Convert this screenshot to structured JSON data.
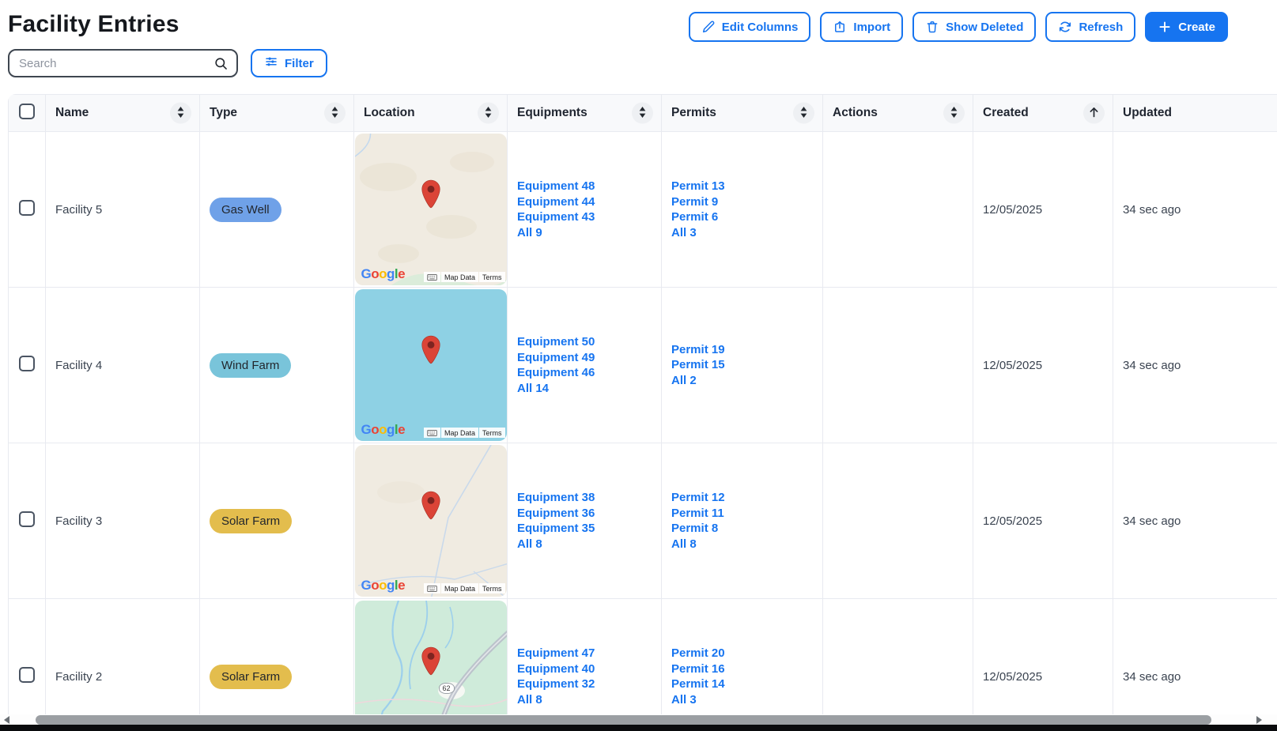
{
  "page": {
    "title": "Facility Entries",
    "accent_color": "#1674f0",
    "link_color": "#1674f0"
  },
  "toolbar": {
    "search": {
      "placeholder": "Search"
    },
    "filter": {
      "label": "Filter"
    },
    "actions": [
      {
        "id": "edit-columns",
        "label": "Edit Columns",
        "icon": "pencil-icon",
        "variant": "outline"
      },
      {
        "id": "import",
        "label": "Import",
        "icon": "upload-icon",
        "variant": "outline"
      },
      {
        "id": "show-deleted",
        "label": "Show Deleted",
        "icon": "trash-icon",
        "variant": "outline"
      },
      {
        "id": "refresh",
        "label": "Refresh",
        "icon": "refresh-icon",
        "variant": "outline"
      },
      {
        "id": "create",
        "label": "Create",
        "icon": "plus-icon",
        "variant": "primary"
      }
    ]
  },
  "table": {
    "columns": [
      {
        "id": "select",
        "label": "",
        "sort": null
      },
      {
        "id": "name",
        "label": "Name",
        "sort": "both"
      },
      {
        "id": "type",
        "label": "Type",
        "sort": "both"
      },
      {
        "id": "location",
        "label": "Location",
        "sort": "both"
      },
      {
        "id": "equipments",
        "label": "Equipments",
        "sort": "both"
      },
      {
        "id": "permits",
        "label": "Permits",
        "sort": "both"
      },
      {
        "id": "actions",
        "label": "Actions",
        "sort": "both"
      },
      {
        "id": "created",
        "label": "Created",
        "sort": "asc"
      },
      {
        "id": "updated",
        "label": "Updated",
        "sort": null
      }
    ],
    "map_attribution": {
      "google": "Google",
      "map_data": "Map Data",
      "terms": "Terms"
    },
    "rows": [
      {
        "name": "Facility 5",
        "type": {
          "label": "Gas Well",
          "bg": "#6FA1E8"
        },
        "map": {
          "style": "terrain-beige"
        },
        "equipments": [
          "Equipment 48",
          "Equipment 44",
          "Equipment 43",
          "All 9"
        ],
        "permits": [
          "Permit 13",
          "Permit 9",
          "Permit 6",
          "All 3"
        ],
        "created": "12/05/2025",
        "updated": "34 sec ago"
      },
      {
        "name": "Facility 4",
        "type": {
          "label": "Wind Farm",
          "bg": "#79C4DA"
        },
        "map": {
          "style": "water"
        },
        "equipments": [
          "Equipment 50",
          "Equipment 49",
          "Equipment 46",
          "All 14"
        ],
        "permits": [
          "Permit 19",
          "Permit 15",
          "All 2"
        ],
        "created": "12/05/2025",
        "updated": "34 sec ago"
      },
      {
        "name": "Facility 3",
        "type": {
          "label": "Solar Farm",
          "bg": "#E3BD4D"
        },
        "map": {
          "style": "terrain-roads"
        },
        "equipments": [
          "Equipment 38",
          "Equipment 36",
          "Equipment 35",
          "All 8"
        ],
        "permits": [
          "Permit 12",
          "Permit 11",
          "Permit 8",
          "All 8"
        ],
        "created": "12/05/2025",
        "updated": "34 sec ago"
      },
      {
        "name": "Facility 2",
        "type": {
          "label": "Solar Farm",
          "bg": "#E3BD4D"
        },
        "map": {
          "style": "green-rivers",
          "route_shield": "62"
        },
        "equipments": [
          "Equipment 47",
          "Equipment 40",
          "Equipment 32",
          "All 8"
        ],
        "permits": [
          "Permit 20",
          "Permit 16",
          "Permit 14",
          "All 3"
        ],
        "created": "12/05/2025",
        "updated": "34 sec ago"
      }
    ]
  }
}
